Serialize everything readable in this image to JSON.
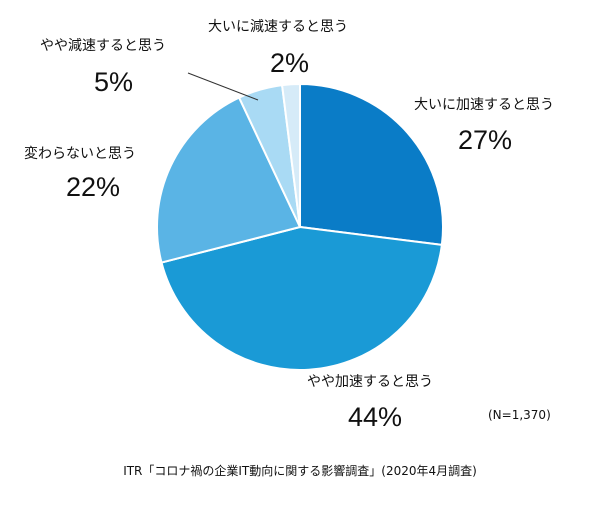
{
  "chart_data": {
    "type": "pie",
    "start_angle_deg": 0,
    "direction": "clockwise",
    "categories": [
      "大いに加速すると思う",
      "やや加速すると思う",
      "変わらないと思う",
      "やや減速すると思う",
      "大いに減速すると思う"
    ],
    "values": [
      27,
      44,
      22,
      5,
      2
    ],
    "value_labels": [
      "27%",
      "44%",
      "22%",
      "5%",
      "2%"
    ],
    "colors": [
      "#0a7cc7",
      "#1a9ad6",
      "#5ab4e5",
      "#a9daf4",
      "#d6ebf8"
    ],
    "sample_note": "(N=1,370)",
    "source": "ITR「コロナ禍の企業IT動向に関する影響調査」(2020年4月調査)"
  }
}
